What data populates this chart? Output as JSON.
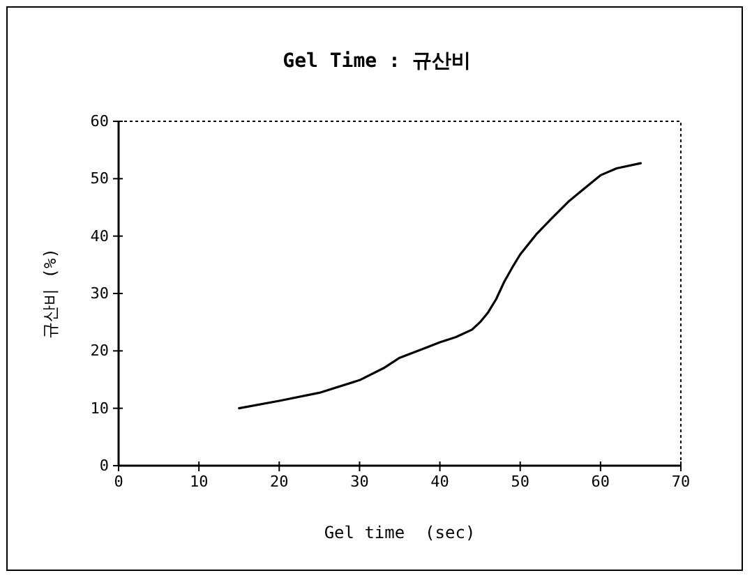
{
  "chart_data": {
    "type": "line",
    "title": "Gel Time : 규산비",
    "xlabel": "Gel time  (sec)",
    "ylabel": "규산비 (%)",
    "xlim": [
      0,
      70
    ],
    "xticks": [
      0,
      10,
      20,
      30,
      40,
      50,
      60,
      70
    ],
    "ylim": [
      0,
      60
    ],
    "yticks": [
      0,
      10,
      20,
      30,
      40,
      50,
      60
    ],
    "x": [
      15,
      20,
      25,
      30,
      33,
      35,
      38,
      40,
      42,
      44,
      45,
      46,
      47,
      48,
      49,
      50,
      52,
      54,
      56,
      58,
      60,
      62,
      65
    ],
    "series": [
      {
        "color": "#000000",
        "values": [
          10,
          11.3,
          12.7,
          14.9,
          17,
          18.8,
          20.4,
          21.5,
          22.4,
          23.7,
          25,
          26.7,
          29,
          32,
          34.5,
          36.8,
          40.3,
          43.2,
          46,
          48.3,
          50.6,
          51.8,
          52.7
        ]
      }
    ],
    "grid": false,
    "marker": "none",
    "line_style": "solid"
  }
}
